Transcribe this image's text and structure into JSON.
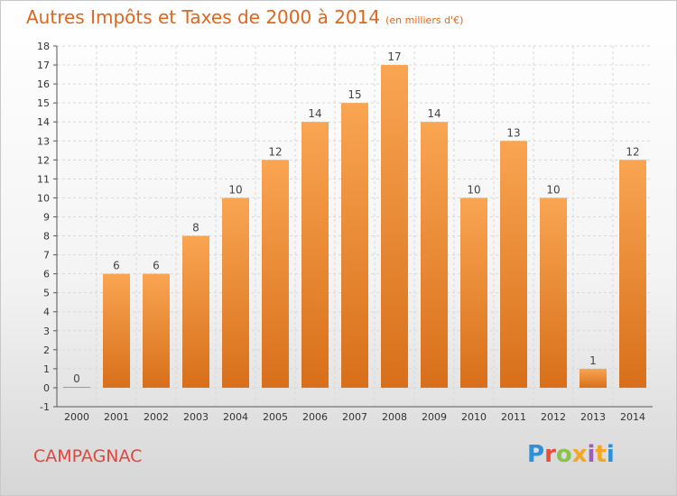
{
  "header": {
    "title": "Autres Impôts et Taxes de 2000 à 2014",
    "subtitle": "(en milliers d'€)"
  },
  "footer": {
    "place": "CAMPAGNAC",
    "logo": "Proxiti",
    "logo_colors": [
      "#2f8fd8",
      "#e84c3d",
      "#8bc34a",
      "#f5a623",
      "#9c5fb5",
      "#f5a623",
      "#2f8fd8"
    ]
  },
  "colors": {
    "bar_top": "#f9a552",
    "bar_bottom": "#d86f1a",
    "grid": "#d8d8d8",
    "axis": "#555555",
    "title": "#e2651b"
  },
  "chart_data": {
    "type": "bar",
    "categories": [
      "2000",
      "2001",
      "2002",
      "2003",
      "2004",
      "2005",
      "2006",
      "2007",
      "2008",
      "2009",
      "2010",
      "2011",
      "2012",
      "2013",
      "2014"
    ],
    "values": [
      0,
      6,
      6,
      8,
      10,
      12,
      14,
      15,
      17,
      14,
      10,
      13,
      10,
      1,
      12
    ],
    "data_labels": [
      "0",
      "6",
      "6",
      "8",
      "10",
      "12",
      "14",
      "15",
      "17",
      "14",
      "10",
      "13",
      "10",
      "1",
      "12"
    ],
    "yticks": [
      "-1",
      "0",
      "1",
      "2",
      "3",
      "4",
      "5",
      "6",
      "7",
      "8",
      "9",
      "10",
      "11",
      "12",
      "13",
      "14",
      "15",
      "16",
      "17",
      "18"
    ],
    "ylim": [
      -1,
      18
    ],
    "grid": true
  }
}
